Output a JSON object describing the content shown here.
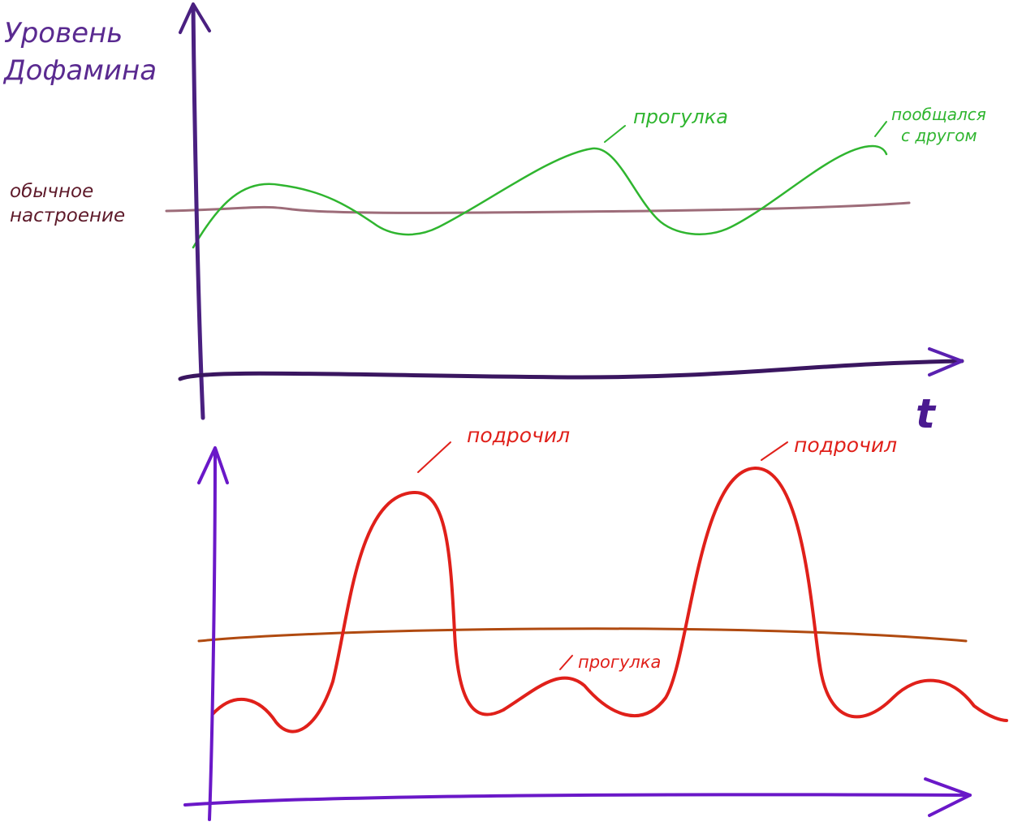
{
  "top": {
    "y_label": [
      "Уровень",
      "Дофамина"
    ],
    "baseline_label": [
      "обычное",
      "настроение"
    ],
    "x_label": "t",
    "annotations": {
      "walk": "прогулка",
      "talk": [
        "пообщался",
        "с другом"
      ]
    }
  },
  "bottom": {
    "annotations": {
      "peak1": "подрочил",
      "peak2": "подрочил",
      "walk": "прогулка"
    }
  }
}
